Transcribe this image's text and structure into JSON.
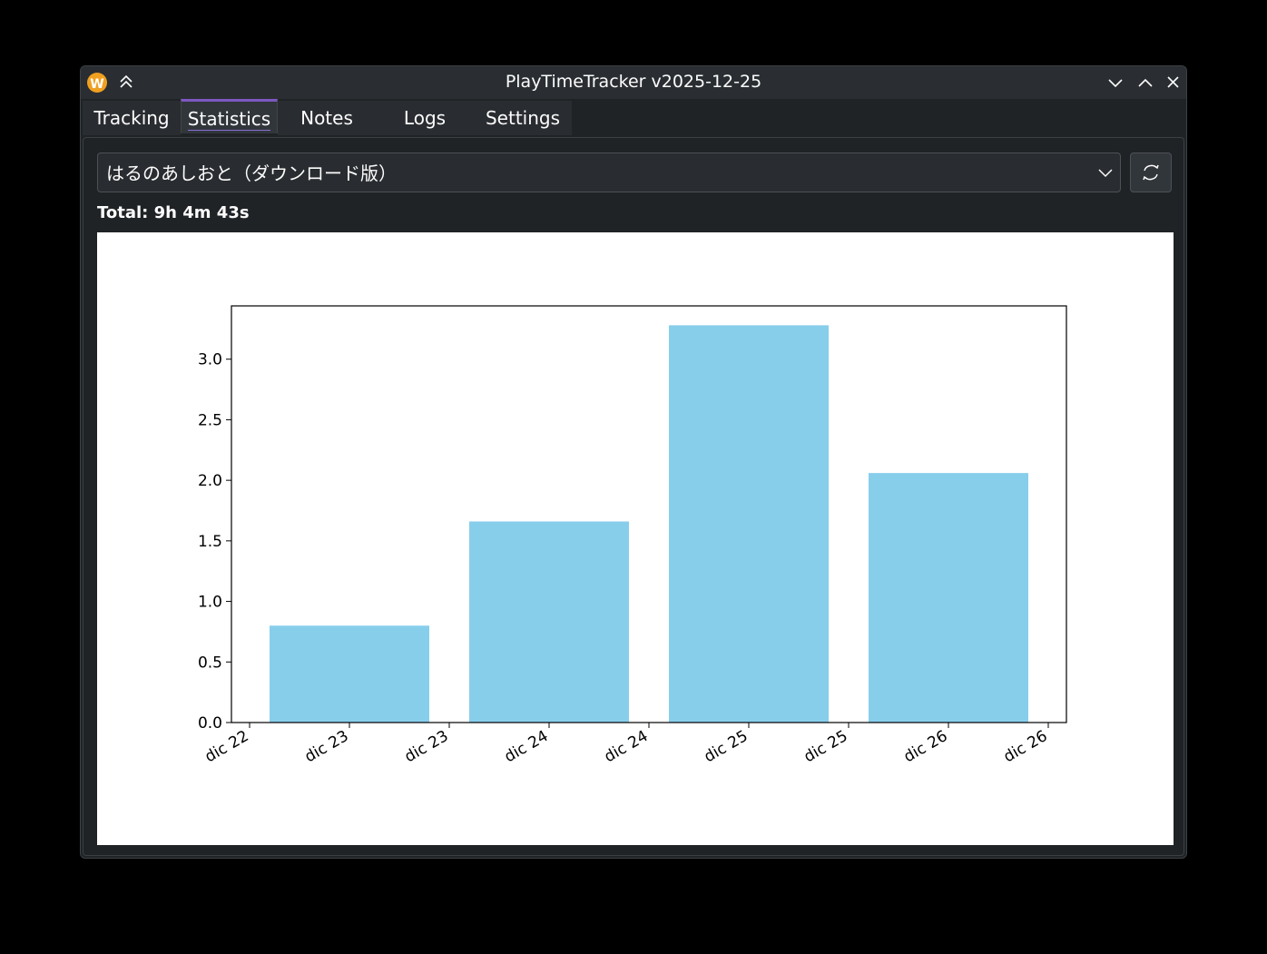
{
  "window": {
    "title": "PlayTimeTracker v2025-12-25"
  },
  "tabs": [
    "Tracking",
    "Statistics",
    "Notes",
    "Logs",
    "Settings"
  ],
  "game_select": "はるのあしおと（ダウンロード版）",
  "total": "Total: 9h 4m 43s",
  "chart_data": {
    "type": "bar",
    "values": [
      0.8,
      1.66,
      3.28,
      2.06
    ],
    "color": "#87ceeb",
    "ylim": [
      0,
      3.44
    ],
    "yticks": [
      {
        "value": 0,
        "label": "0.0"
      },
      {
        "value": 0.5,
        "label": "0.5"
      },
      {
        "value": 1,
        "label": "1.0"
      },
      {
        "value": 1.5,
        "label": "1.5"
      },
      {
        "value": 2,
        "label": "2.0"
      },
      {
        "value": 2.5,
        "label": "2.5"
      },
      {
        "value": 3,
        "label": "3.0"
      }
    ],
    "xtick_labels": [
      "dic 22",
      "dic 23",
      "dic 23",
      "dic 24",
      "dic 24",
      "dic 25",
      "dic 25",
      "dic 26",
      "dic 26"
    ]
  }
}
